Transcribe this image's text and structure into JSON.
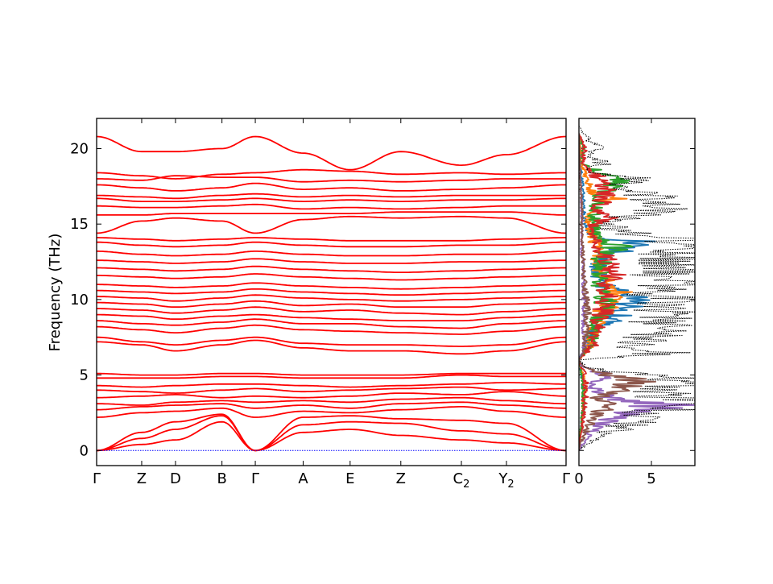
{
  "chart_data": [
    {
      "type": "line",
      "title": "",
      "xlabel": "",
      "ylabel": "Frequency (THz)",
      "ylim": [
        -1,
        22
      ],
      "ytick_labels": [
        "0",
        "5",
        "10",
        "15",
        "20"
      ],
      "yticks": [
        0,
        5,
        10,
        15,
        20
      ],
      "kpath": [
        {
          "base": "Γ",
          "sub": "",
          "pos": 0.0
        },
        {
          "base": "Z",
          "sub": "",
          "pos": 0.096
        },
        {
          "base": "D",
          "sub": "",
          "pos": 0.168
        },
        {
          "base": "B",
          "sub": "",
          "pos": 0.267
        },
        {
          "base": "Γ",
          "sub": "",
          "pos": 0.338
        },
        {
          "base": "A",
          "sub": "",
          "pos": 0.44
        },
        {
          "base": "E",
          "sub": "",
          "pos": 0.54
        },
        {
          "base": "Z",
          "sub": "",
          "pos": 0.648
        },
        {
          "base": "C",
          "sub": "2",
          "pos": 0.777
        },
        {
          "base": "Y",
          "sub": "2",
          "pos": 0.873
        },
        {
          "base": "Γ",
          "sub": "",
          "pos": 1.0
        }
      ],
      "band_color": "#ff0000",
      "zero_line_color": "#0000ff",
      "bands": [
        [
          0,
          0.4,
          0.7,
          1.9,
          0,
          1.2,
          1.4,
          1.0,
          0.7,
          0.5,
          0
        ],
        [
          0,
          0.8,
          1.4,
          2.3,
          0,
          1.7,
          1.9,
          1.8,
          1.3,
          1.1,
          0
        ],
        [
          0,
          1.2,
          1.9,
          2.4,
          0,
          2.2,
          2.3,
          2.1,
          2.0,
          1.8,
          0
        ],
        [
          2.2,
          2.5,
          2.6,
          2.8,
          2.2,
          2.6,
          2.5,
          2.7,
          2.9,
          2.6,
          2.2
        ],
        [
          2.7,
          2.9,
          3.0,
          3.1,
          2.8,
          3.0,
          2.8,
          3.1,
          3.2,
          3.0,
          2.8
        ],
        [
          3.1,
          3.0,
          3.2,
          3.3,
          3.2,
          3.3,
          3.2,
          3.4,
          3.5,
          3.3,
          3.1
        ],
        [
          3.5,
          3.6,
          3.7,
          3.5,
          3.6,
          3.5,
          3.6,
          3.8,
          3.7,
          3.9,
          3.6
        ],
        [
          4.0,
          3.9,
          3.8,
          4.0,
          4.1,
          3.9,
          4.0,
          4.1,
          4.2,
          4.0,
          4.1
        ],
        [
          4.3,
          4.2,
          4.3,
          4.4,
          4.4,
          4.3,
          4.2,
          4.3,
          4.4,
          4.5,
          4.4
        ],
        [
          4.8,
          4.8,
          4.8,
          4.9,
          4.9,
          4.8,
          4.8,
          4.8,
          5.0,
          4.9,
          4.9
        ],
        [
          5.1,
          5.0,
          5.0,
          5.1,
          5.1,
          5.0,
          5.0,
          5.0,
          5.1,
          5.1,
          5.1
        ],
        [
          7.2,
          7.0,
          6.6,
          7.0,
          7.3,
          6.8,
          6.6,
          6.6,
          6.4,
          6.6,
          7.2
        ],
        [
          7.5,
          7.2,
          7.0,
          7.3,
          7.5,
          7.1,
          7.0,
          7.0,
          6.9,
          7.0,
          7.5
        ],
        [
          8.2,
          8.0,
          7.8,
          8.1,
          8.3,
          8.0,
          7.9,
          7.8,
          7.7,
          7.9,
          8.2
        ],
        [
          8.6,
          8.4,
          8.3,
          8.5,
          8.7,
          8.4,
          8.4,
          8.2,
          8.1,
          8.4,
          8.6
        ],
        [
          9.0,
          8.9,
          8.7,
          8.9,
          9.0,
          8.8,
          8.7,
          8.6,
          8.6,
          8.8,
          9.0
        ],
        [
          9.4,
          9.3,
          9.1,
          9.3,
          9.5,
          9.2,
          9.3,
          9.1,
          9.0,
          9.2,
          9.4
        ],
        [
          9.8,
          9.7,
          9.5,
          9.7,
          9.9,
          9.6,
          9.7,
          9.5,
          9.5,
          9.7,
          9.8
        ],
        [
          10.2,
          10.1,
          9.9,
          10.1,
          10.3,
          10.1,
          10.0,
          9.9,
          10.0,
          10.1,
          10.2
        ],
        [
          10.6,
          10.5,
          10.4,
          10.5,
          10.7,
          10.5,
          10.4,
          10.3,
          10.4,
          10.5,
          10.6
        ],
        [
          11.0,
          10.9,
          10.8,
          10.9,
          11.1,
          10.9,
          10.8,
          10.7,
          10.8,
          10.9,
          11.0
        ],
        [
          11.6,
          11.5,
          11.4,
          11.5,
          11.7,
          11.5,
          11.4,
          11.3,
          11.4,
          11.5,
          11.6
        ],
        [
          12.1,
          12.0,
          11.9,
          12.0,
          12.2,
          12.0,
          11.9,
          11.8,
          11.9,
          12.0,
          12.1
        ],
        [
          12.6,
          12.5,
          12.4,
          12.5,
          12.7,
          12.5,
          12.4,
          12.4,
          12.5,
          12.5,
          12.6
        ],
        [
          13.2,
          13.0,
          12.9,
          13.0,
          13.2,
          13.0,
          12.9,
          12.9,
          13.0,
          13.0,
          13.2
        ],
        [
          13.8,
          13.6,
          13.5,
          13.6,
          13.8,
          13.6,
          13.5,
          13.5,
          13.6,
          13.6,
          13.8
        ],
        [
          14.1,
          14.0,
          13.9,
          14.0,
          14.1,
          14.0,
          13.9,
          13.9,
          13.9,
          14.0,
          14.1
        ],
        [
          14.4,
          15.2,
          15.4,
          15.2,
          14.4,
          15.3,
          15.5,
          15.4,
          15.5,
          15.4,
          14.4
        ],
        [
          15.6,
          15.6,
          15.7,
          15.7,
          15.7,
          15.7,
          15.7,
          15.8,
          15.8,
          15.8,
          15.6
        ],
        [
          16.2,
          16.1,
          16.1,
          16.2,
          16.3,
          16.0,
          16.1,
          16.0,
          16.1,
          16.2,
          16.2
        ],
        [
          16.7,
          16.5,
          16.5,
          16.6,
          16.7,
          16.5,
          16.6,
          16.5,
          16.6,
          16.6,
          16.7
        ],
        [
          16.9,
          16.8,
          16.7,
          16.9,
          17.0,
          16.8,
          16.9,
          16.8,
          16.9,
          16.9,
          16.9
        ],
        [
          17.6,
          17.4,
          17.2,
          17.4,
          17.7,
          17.3,
          17.4,
          17.2,
          17.3,
          17.4,
          17.6
        ],
        [
          18.0,
          17.9,
          18.2,
          18.1,
          18.1,
          17.8,
          17.9,
          17.8,
          17.9,
          18.0,
          18.0
        ],
        [
          18.4,
          18.2,
          18.0,
          18.3,
          18.4,
          18.6,
          18.5,
          18.3,
          18.4,
          18.3,
          18.4
        ],
        [
          20.8,
          19.8,
          19.8,
          20.0,
          20.8,
          19.7,
          18.6,
          19.8,
          18.9,
          19.6,
          20.8
        ]
      ]
    },
    {
      "type": "line",
      "title": "",
      "xlabel": "",
      "ylabel": "",
      "xlim": [
        0,
        8
      ],
      "ylim": [
        -1,
        22
      ],
      "xtick_labels": [
        "0",
        "5"
      ],
      "xticks": [
        0,
        5
      ],
      "total_dos_color": "#000000",
      "series": [
        {
          "color": "#1f77b4",
          "freq": [
            0,
            1,
            2,
            3,
            4,
            5,
            6,
            6.5,
            7,
            8,
            9,
            10,
            11,
            12,
            13,
            13.8,
            14,
            15,
            16,
            17,
            18,
            19,
            20,
            21
          ],
          "dos": [
            0,
            0.1,
            0.2,
            0.3,
            0.3,
            0.2,
            0,
            0.3,
            0.6,
            1.2,
            2.8,
            3.6,
            1.6,
            1.2,
            1.8,
            5.6,
            1.3,
            0.4,
            0.3,
            0.3,
            0.2,
            0.1,
            0.1,
            0
          ]
        },
        {
          "color": "#ff7f0e",
          "freq": [
            0,
            1,
            2,
            3,
            4,
            5,
            6,
            6.5,
            7,
            8,
            9,
            10,
            11,
            12,
            13,
            14,
            15,
            16,
            16.8,
            17,
            18,
            19,
            20,
            21
          ],
          "dos": [
            0,
            0.1,
            0.2,
            0.3,
            0.4,
            0.3,
            0,
            0.4,
            0.8,
            1.0,
            1.6,
            2.2,
            2.9,
            1.4,
            1.3,
            1.1,
            0.6,
            1.0,
            2.6,
            1.0,
            0.5,
            0.2,
            0.1,
            0
          ]
        },
        {
          "color": "#2ca02c",
          "freq": [
            0,
            1,
            2,
            3,
            4,
            5,
            6,
            6.5,
            7,
            8,
            9,
            10,
            11,
            12,
            13,
            13.5,
            14,
            15,
            16,
            17,
            18,
            19,
            20,
            21
          ],
          "dos": [
            0,
            0.1,
            0.2,
            0.3,
            0.3,
            0.2,
            0,
            0.4,
            0.8,
            1.1,
            1.5,
            1.9,
            1.3,
            1.7,
            1.5,
            2.8,
            1.3,
            1.0,
            1.2,
            1.6,
            2.6,
            0.2,
            0.3,
            0
          ]
        },
        {
          "color": "#d62728",
          "freq": [
            0,
            1,
            2,
            3,
            4,
            5,
            6,
            6.5,
            7,
            8,
            9,
            10,
            11,
            12,
            13,
            14,
            15,
            15.5,
            16,
            17,
            18,
            19,
            20,
            21
          ],
          "dos": [
            0,
            0.1,
            0.3,
            0.4,
            0.5,
            0.4,
            0,
            0.5,
            1.0,
            1.2,
            1.6,
            2.0,
            1.8,
            2.5,
            1.6,
            1.0,
            1.0,
            2.2,
            1.2,
            2.0,
            1.5,
            0.3,
            0.4,
            0
          ]
        },
        {
          "color": "#9467bd",
          "freq": [
            0,
            0.5,
            1,
            1.5,
            2,
            2.5,
            3,
            3.5,
            4,
            4.5,
            5,
            5.5,
            6,
            6.5,
            7,
            8,
            9,
            10,
            11,
            12,
            13,
            14,
            16,
            18,
            21
          ],
          "dos": [
            0,
            0.3,
            0.7,
            1.2,
            2.2,
            3.6,
            5.8,
            2.5,
            1.2,
            0.8,
            2.2,
            0.3,
            0,
            0.2,
            0.4,
            0.3,
            0.3,
            0.4,
            0.3,
            0.3,
            0.2,
            0.2,
            0.2,
            0.1,
            0
          ]
        },
        {
          "color": "#8c564b",
          "freq": [
            0,
            0.5,
            1,
            1.5,
            2,
            2.5,
            3,
            3.5,
            4,
            4.5,
            5,
            5.5,
            6,
            6.5,
            7,
            8,
            9,
            10,
            11,
            12,
            13,
            14,
            16,
            18,
            21
          ],
          "dos": [
            0,
            0.1,
            0.4,
            0.6,
            1.0,
            1.4,
            2.0,
            1.4,
            2.8,
            4.2,
            2.2,
            0.3,
            0,
            0.3,
            0.4,
            0.5,
            0.6,
            0.5,
            0.4,
            0.3,
            0.3,
            0.2,
            0.2,
            0.1,
            0
          ]
        },
        {
          "color": "#000000",
          "dotted": true,
          "freq": [
            0,
            0.5,
            1,
            1.5,
            2,
            2.5,
            3,
            3.5,
            4,
            4.5,
            5,
            5.5,
            6,
            6.5,
            7,
            7.5,
            8,
            8.5,
            9,
            9.5,
            10,
            10.5,
            11,
            11.5,
            12,
            12.5,
            13,
            13.5,
            14,
            14.5,
            15,
            15.5,
            16,
            16.5,
            17,
            17.5,
            18,
            18.5,
            19,
            19.5,
            20,
            20.5,
            21,
            21.5
          ],
          "dos": [
            0,
            0.6,
            1.6,
            3.0,
            4.2,
            5.2,
            7.6,
            5.8,
            6.2,
            7.8,
            4.6,
            0.4,
            0.1,
            6.1,
            3.8,
            4.8,
            6.0,
            5.2,
            6.4,
            5.8,
            7.8,
            4.6,
            6.9,
            5.2,
            7.2,
            5.6,
            6.6,
            6.0,
            8.2,
            2.8,
            2.4,
            3.6,
            5.2,
            6.8,
            4.8,
            2.2,
            4.6,
            0.4,
            1.9,
            0.6,
            1.4,
            0.8,
            0.3,
            0
          ]
        }
      ]
    }
  ]
}
